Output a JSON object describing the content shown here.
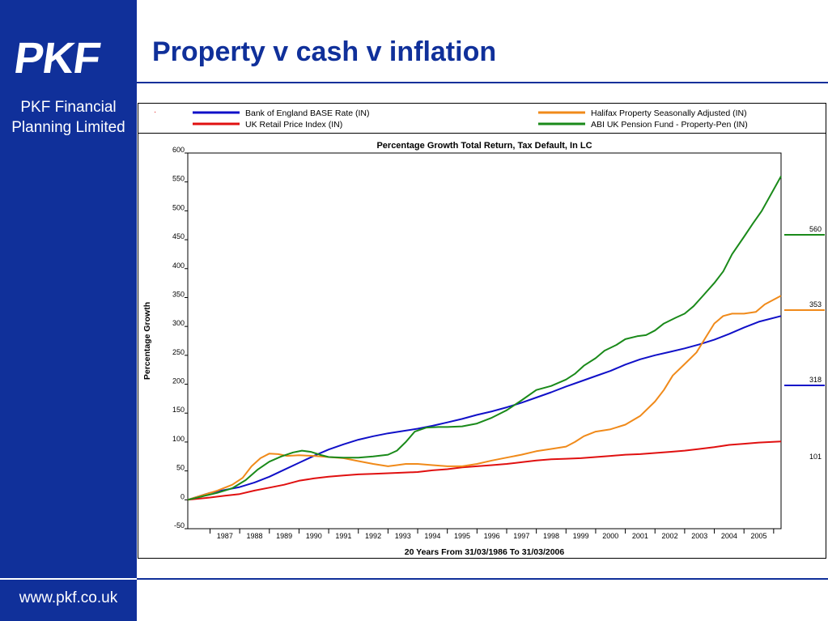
{
  "brand": {
    "logo_text": "PKF",
    "company_line1": "PKF Financial",
    "company_line2": "Planning Limited",
    "url": "www.pkf.co.uk"
  },
  "slide": {
    "title": "Property v cash v inflation"
  },
  "legend": {
    "dot": "·"
  },
  "chart_data": {
    "type": "line",
    "title": "Percentage Growth Total Return, Tax Default, In LC",
    "xlabel": "20 Years From 31/03/1986 To 31/03/2006",
    "ylabel": "Percentage Growth",
    "ylim": [
      -50,
      600
    ],
    "yticks": [
      600,
      550,
      500,
      450,
      400,
      350,
      300,
      250,
      200,
      150,
      100,
      50,
      0,
      -50
    ],
    "xlim": [
      1986.25,
      2006.25
    ],
    "xticks": [
      "1987",
      "1988",
      "1989",
      "1990",
      "1991",
      "1992",
      "1993",
      "1994",
      "1995",
      "1996",
      "1997",
      "1998",
      "1999",
      "2000",
      "2001",
      "2002",
      "2003",
      "2004",
      "2005"
    ],
    "grid": false,
    "legend_position": "top",
    "series": [
      {
        "name": "Bank of England BASE Rate (IN)",
        "color": "#1010c8",
        "end_label": "318",
        "points": [
          [
            1986.25,
            0
          ],
          [
            1987,
            12
          ],
          [
            1988,
            22
          ],
          [
            1988.5,
            30
          ],
          [
            1989,
            40
          ],
          [
            1989.5,
            52
          ],
          [
            1990,
            64
          ],
          [
            1990.5,
            76
          ],
          [
            1991,
            87
          ],
          [
            1991.5,
            96
          ],
          [
            1992,
            104
          ],
          [
            1992.5,
            110
          ],
          [
            1993,
            115
          ],
          [
            1993.5,
            119
          ],
          [
            1994,
            123
          ],
          [
            1994.5,
            128
          ],
          [
            1995,
            134
          ],
          [
            1995.5,
            140
          ],
          [
            1996,
            147
          ],
          [
            1996.5,
            153
          ],
          [
            1997,
            160
          ],
          [
            1997.5,
            168
          ],
          [
            1998,
            177
          ],
          [
            1998.5,
            186
          ],
          [
            1999,
            196
          ],
          [
            1999.5,
            205
          ],
          [
            2000,
            214
          ],
          [
            2000.5,
            223
          ],
          [
            2001,
            234
          ],
          [
            2001.5,
            243
          ],
          [
            2002,
            250
          ],
          [
            2002.5,
            256
          ],
          [
            2003,
            262
          ],
          [
            2003.5,
            269
          ],
          [
            2004,
            277
          ],
          [
            2004.5,
            287
          ],
          [
            2005,
            298
          ],
          [
            2005.5,
            308
          ],
          [
            2006.25,
            318
          ]
        ]
      },
      {
        "name": "UK Retail Price Index (IN)",
        "color": "#e01010",
        "end_label": "101",
        "points": [
          [
            1986.25,
            0
          ],
          [
            1987,
            4
          ],
          [
            1987.5,
            7
          ],
          [
            1988,
            10
          ],
          [
            1988.5,
            16
          ],
          [
            1989,
            21
          ],
          [
            1989.5,
            26
          ],
          [
            1990,
            33
          ],
          [
            1990.5,
            37
          ],
          [
            1991,
            40
          ],
          [
            1991.5,
            42
          ],
          [
            1992,
            44
          ],
          [
            1992.5,
            45
          ],
          [
            1993,
            46
          ],
          [
            1993.5,
            47
          ],
          [
            1994,
            48
          ],
          [
            1994.5,
            51
          ],
          [
            1995,
            53
          ],
          [
            1995.5,
            56
          ],
          [
            1996,
            58
          ],
          [
            1996.5,
            60
          ],
          [
            1997,
            62
          ],
          [
            1997.5,
            65
          ],
          [
            1998,
            68
          ],
          [
            1998.5,
            70
          ],
          [
            1999,
            71
          ],
          [
            1999.5,
            72
          ],
          [
            2000,
            74
          ],
          [
            2000.5,
            76
          ],
          [
            2001,
            78
          ],
          [
            2001.5,
            79
          ],
          [
            2002,
            81
          ],
          [
            2002.5,
            83
          ],
          [
            2003,
            85
          ],
          [
            2003.5,
            88
          ],
          [
            2004,
            91
          ],
          [
            2004.5,
            95
          ],
          [
            2005,
            97
          ],
          [
            2005.5,
            99
          ],
          [
            2006.25,
            101
          ]
        ]
      },
      {
        "name": "Halifax Property Seasonally Adjusted (IN)",
        "color": "#f08a1a",
        "end_label": "353",
        "points": [
          [
            1986.25,
            0
          ],
          [
            1986.75,
            8
          ],
          [
            1987.25,
            16
          ],
          [
            1987.75,
            26
          ],
          [
            1988.1,
            38
          ],
          [
            1988.4,
            58
          ],
          [
            1988.7,
            72
          ],
          [
            1989,
            80
          ],
          [
            1989.3,
            79
          ],
          [
            1989.6,
            76
          ],
          [
            1990,
            77
          ],
          [
            1990.5,
            76
          ],
          [
            1991,
            74
          ],
          [
            1991.5,
            72
          ],
          [
            1992,
            67
          ],
          [
            1992.5,
            62
          ],
          [
            1993,
            58
          ],
          [
            1993.3,
            60
          ],
          [
            1993.6,
            62
          ],
          [
            1994,
            62
          ],
          [
            1994.5,
            60
          ],
          [
            1995,
            58
          ],
          [
            1995.5,
            58
          ],
          [
            1996,
            62
          ],
          [
            1996.5,
            68
          ],
          [
            1997,
            73
          ],
          [
            1997.5,
            78
          ],
          [
            1998,
            84
          ],
          [
            1998.5,
            88
          ],
          [
            1999,
            92
          ],
          [
            1999.3,
            100
          ],
          [
            1999.6,
            110
          ],
          [
            2000,
            118
          ],
          [
            2000.5,
            122
          ],
          [
            2001,
            130
          ],
          [
            2001.5,
            145
          ],
          [
            2002,
            170
          ],
          [
            2002.3,
            190
          ],
          [
            2002.6,
            215
          ],
          [
            2003,
            235
          ],
          [
            2003.4,
            255
          ],
          [
            2003.7,
            280
          ],
          [
            2004,
            305
          ],
          [
            2004.3,
            318
          ],
          [
            2004.6,
            322
          ],
          [
            2005,
            322
          ],
          [
            2005.4,
            325
          ],
          [
            2005.7,
            338
          ],
          [
            2006.25,
            353
          ]
        ]
      },
      {
        "name": "ABI UK Pension Fund - Property-Pen (IN)",
        "color": "#1a8a1a",
        "end_label": "560",
        "points": [
          [
            1986.25,
            0
          ],
          [
            1986.75,
            6
          ],
          [
            1987.25,
            12
          ],
          [
            1987.75,
            20
          ],
          [
            1988.2,
            34
          ],
          [
            1988.6,
            52
          ],
          [
            1989,
            66
          ],
          [
            1989.4,
            75
          ],
          [
            1989.8,
            82
          ],
          [
            1990.1,
            85
          ],
          [
            1990.4,
            83
          ],
          [
            1990.7,
            78
          ],
          [
            1991,
            74
          ],
          [
            1991.5,
            73
          ],
          [
            1992,
            73
          ],
          [
            1992.5,
            75
          ],
          [
            1993,
            78
          ],
          [
            1993.3,
            85
          ],
          [
            1993.6,
            100
          ],
          [
            1993.9,
            118
          ],
          [
            1994.3,
            125
          ],
          [
            1994.7,
            126
          ],
          [
            1995,
            126
          ],
          [
            1995.5,
            127
          ],
          [
            1996,
            132
          ],
          [
            1996.5,
            142
          ],
          [
            1997,
            155
          ],
          [
            1997.5,
            172
          ],
          [
            1998,
            190
          ],
          [
            1998.5,
            197
          ],
          [
            1999,
            208
          ],
          [
            1999.3,
            218
          ],
          [
            1999.6,
            232
          ],
          [
            2000,
            245
          ],
          [
            2000.3,
            258
          ],
          [
            2000.7,
            268
          ],
          [
            2001,
            278
          ],
          [
            2001.4,
            283
          ],
          [
            2001.7,
            285
          ],
          [
            2002,
            293
          ],
          [
            2002.3,
            305
          ],
          [
            2002.7,
            315
          ],
          [
            2003,
            322
          ],
          [
            2003.3,
            335
          ],
          [
            2003.6,
            352
          ],
          [
            2004,
            375
          ],
          [
            2004.3,
            395
          ],
          [
            2004.6,
            425
          ],
          [
            2005,
            455
          ],
          [
            2005.3,
            478
          ],
          [
            2005.6,
            500
          ],
          [
            2006.25,
            560
          ]
        ]
      }
    ],
    "side_labels_values": [
      560,
      353,
      318,
      101
    ]
  }
}
